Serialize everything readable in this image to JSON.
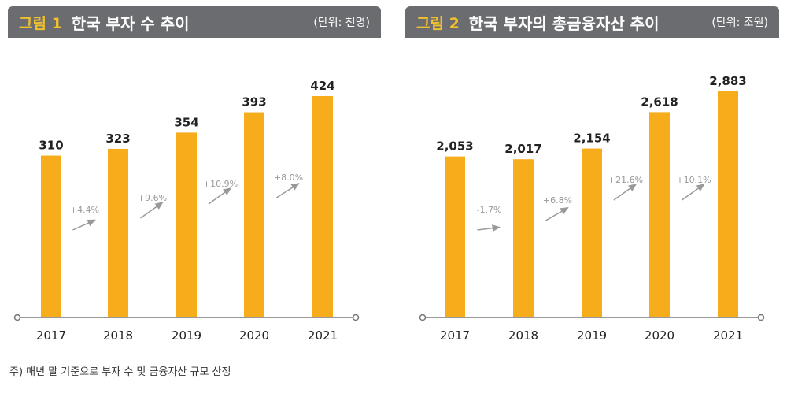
{
  "chart_data": [
    {
      "type": "bar",
      "figure_label": "그림 1",
      "title": "한국 부자 수 추이",
      "unit": "(단위: 천명)",
      "categories": [
        "2017",
        "2018",
        "2019",
        "2020",
        "2021"
      ],
      "values": [
        310,
        323,
        354,
        393,
        424
      ],
      "value_labels": [
        "310",
        "323",
        "354",
        "393",
        "424"
      ],
      "growth_labels": [
        "+4.4%",
        "+9.6%",
        "+10.9%",
        "+8.0%"
      ],
      "bar_color": "#f7ac1c"
    },
    {
      "type": "bar",
      "figure_label": "그림 2",
      "title": "한국 부자의 총금융자산 추이",
      "unit": "(단위: 조원)",
      "categories": [
        "2017",
        "2018",
        "2019",
        "2020",
        "2021"
      ],
      "values": [
        2053,
        2017,
        2154,
        2618,
        2883
      ],
      "value_labels": [
        "2,053",
        "2,017",
        "2,154",
        "2,618",
        "2,883"
      ],
      "growth_labels": [
        "-1.7%",
        "+6.8%",
        "+21.6%",
        "+10.1%"
      ],
      "bar_color": "#f7ac1c"
    }
  ],
  "footnote": "주) 매년 말 기준으로 부자 수 및 금융자산 규모 산정"
}
